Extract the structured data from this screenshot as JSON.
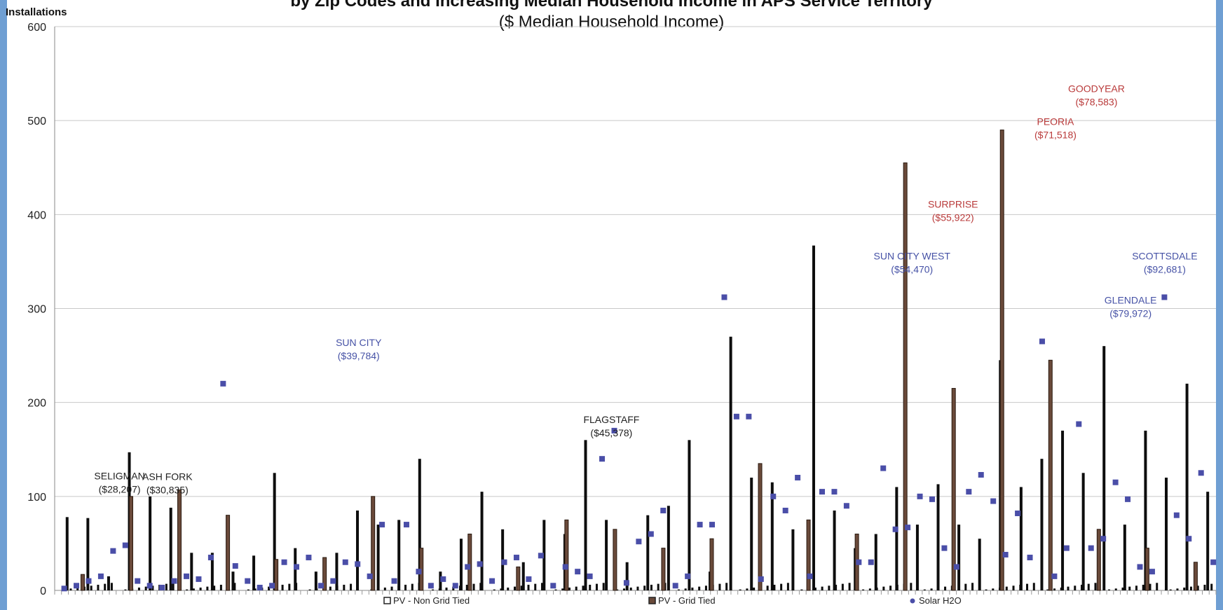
{
  "title_line1": "by Zip Codes and Increasing Median Household Income in APS Service Territory",
  "title_line2": "($ Median Household Income)",
  "chart_data": {
    "type": "bar",
    "ylabel": "Installations",
    "ylim": [
      0,
      600
    ],
    "yticks": [
      0,
      100,
      200,
      300,
      400,
      500,
      600
    ],
    "grid": true,
    "legend_position": "bottom",
    "colors": {
      "non_grid_tied": "#0d0d0d",
      "grid_tied": "#6a4a3a",
      "solar_h2o": "#4a4ea8",
      "gridline": "#c8c8c8",
      "city_blue": "#4652a6",
      "city_red": "#b93a3a",
      "city_black": "#222222"
    },
    "series": [
      {
        "name": "PV - Non Grid Tied",
        "values": [
          78,
          77,
          15,
          147,
          100,
          88,
          40,
          40,
          20,
          37,
          125,
          45,
          20,
          40,
          85,
          70,
          75,
          140,
          20,
          55,
          105,
          65,
          30,
          75,
          60,
          160,
          75,
          30,
          80,
          90,
          160,
          20,
          270,
          120,
          115,
          65,
          367,
          85,
          45,
          60,
          110,
          70,
          113,
          70,
          55,
          245,
          110,
          140,
          170,
          125,
          260,
          70,
          170,
          120,
          220,
          105
        ]
      },
      {
        "name": "PV - Grid Tied",
        "values": [
          17,
          100,
          107,
          80,
          33,
          35,
          100,
          45,
          60,
          25,
          75,
          65,
          45,
          55,
          135,
          75,
          60,
          455,
          215,
          490,
          245,
          65,
          45,
          30
        ]
      },
      {
        "name": "Solar H2O",
        "values": [
          2,
          5,
          10,
          15,
          42,
          48,
          10,
          5,
          3,
          10,
          15,
          12,
          35,
          220,
          26,
          10,
          3,
          5,
          30,
          25,
          35,
          5,
          10,
          30,
          28,
          15,
          70,
          10,
          70,
          20,
          5,
          12,
          5,
          25,
          28,
          10,
          30,
          35,
          12,
          37,
          5,
          25,
          20,
          15,
          140,
          170,
          8,
          52,
          60,
          85,
          5,
          15,
          70,
          70,
          312,
          185,
          185,
          12,
          100,
          85,
          120,
          15,
          105,
          105,
          90,
          30,
          30,
          130,
          65,
          67,
          100,
          97,
          45,
          25,
          105,
          123,
          95,
          38,
          82,
          35,
          265,
          15,
          45,
          177,
          45,
          55,
          115,
          97,
          25,
          20,
          312,
          80,
          55,
          125,
          30
        ]
      }
    ],
    "annotations": [
      {
        "label": "SELIGMAN",
        "income": "($28,207)",
        "x_index": 9,
        "value": 78,
        "color": "black"
      },
      {
        "label": "ASH FORK",
        "income": "($30,835)",
        "x_index": 16,
        "value": 77,
        "color": "black"
      },
      {
        "label": "SUN CITY",
        "income": "($39,784)",
        "x_index": 44,
        "value": 220,
        "color": "blue"
      },
      {
        "label": "FLAGSTAFF",
        "income": "($45,378)",
        "x_index": 81,
        "value": 138,
        "color": "black"
      },
      {
        "label": "SUN CITY WEST",
        "income": "($54,470)",
        "x_index": 125,
        "value": 312,
        "color": "blue"
      },
      {
        "label": "SURPRISE",
        "income": "($55,922)",
        "x_index": 131,
        "value": 367,
        "color": "red"
      },
      {
        "label": "PEORIA",
        "income": "($71,518)",
        "x_index": 146,
        "value": 455,
        "color": "red"
      },
      {
        "label": "GOODYEAR",
        "income": "($78,583)",
        "x_index": 152,
        "value": 490,
        "color": "red"
      },
      {
        "label": "GLENDALE",
        "income": "($79,972)",
        "x_index": 157,
        "value": 265,
        "color": "blue"
      },
      {
        "label": "SCOTTSDALE",
        "income": "($92,681)",
        "x_index": 162,
        "value": 312,
        "color": "blue"
      }
    ]
  },
  "legend": [
    "PV - Non Grid Tied",
    "PV - Grid Tied",
    "Solar H2O"
  ]
}
